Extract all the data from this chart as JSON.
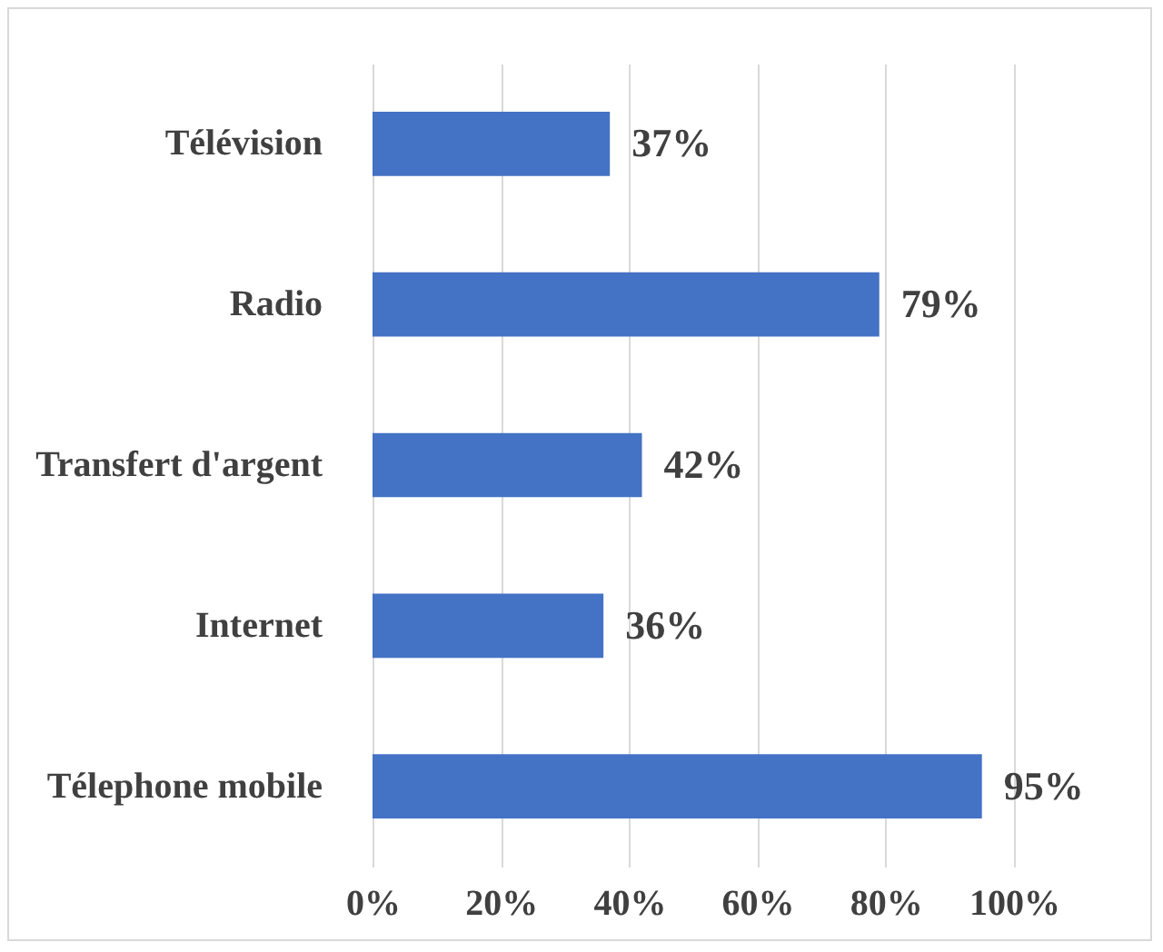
{
  "chart_data": {
    "type": "bar",
    "orientation": "horizontal",
    "categories": [
      "Télévision",
      "Radio",
      "Transfert d'argent",
      "Internet",
      "Télephone mobile"
    ],
    "values": [
      37,
      79,
      42,
      36,
      95
    ],
    "color": "#4472c4",
    "value_labels": [
      "37%",
      "79%",
      "42%",
      "36%",
      "95%"
    ],
    "xlim": [
      0,
      100
    ],
    "xticks": [
      {
        "value": 0,
        "label": "0%"
      },
      {
        "value": 20,
        "label": "20%"
      },
      {
        "value": 40,
        "label": "40%"
      },
      {
        "value": 60,
        "label": "60%"
      },
      {
        "value": 80,
        "label": "80%"
      },
      {
        "value": 100,
        "label": "100%"
      }
    ],
    "grid": "x"
  }
}
